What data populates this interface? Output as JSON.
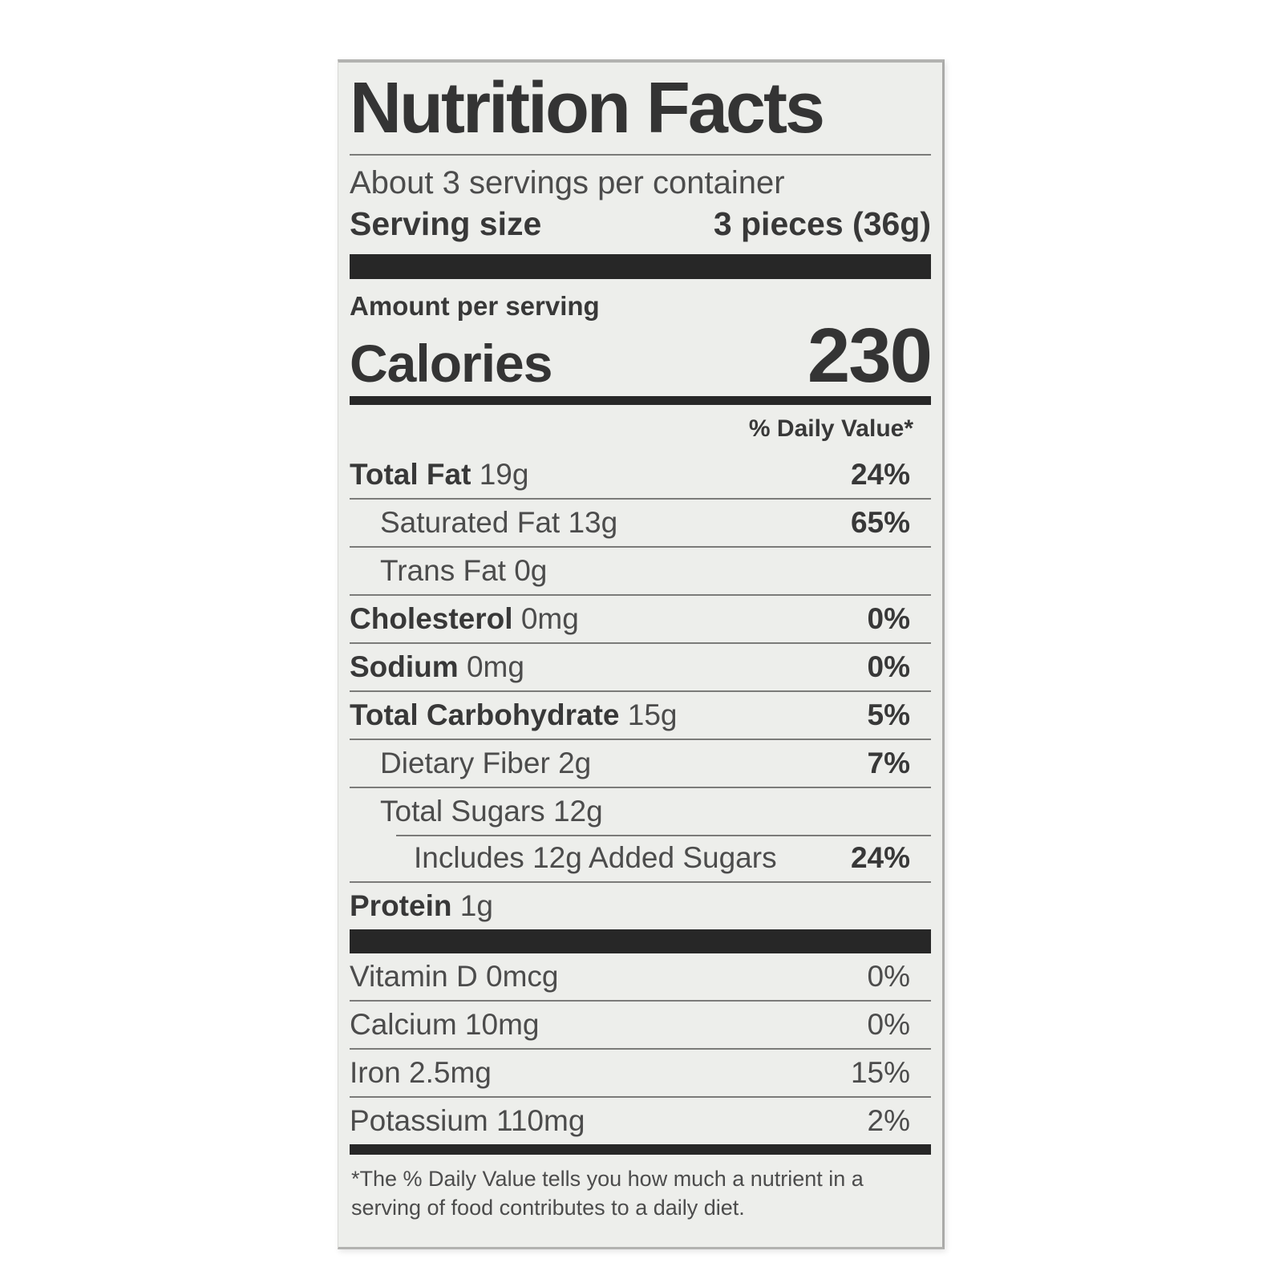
{
  "label": {
    "title": "Nutrition Facts",
    "servings_per_container": "About 3 servings per container",
    "serving_size": {
      "label": "Serving size",
      "value": "3 pieces (36g)"
    },
    "amount_per_serving": "Amount per serving",
    "calories": {
      "label": "Calories",
      "value": "230"
    },
    "daily_value_header": "% Daily Value*",
    "nutrients": [
      {
        "name": "Total Fat",
        "amount": "19g",
        "dv": "24%",
        "bold_name": true,
        "bold_dv": true,
        "indent": 0
      },
      {
        "name": "Saturated Fat",
        "amount": "13g",
        "dv": "65%",
        "bold_name": false,
        "bold_dv": true,
        "indent": 1
      },
      {
        "name": "Trans Fat",
        "amount": "0g",
        "dv": "",
        "bold_name": false,
        "bold_dv": false,
        "indent": 1
      },
      {
        "name": "Cholesterol",
        "amount": "0mg",
        "dv": "0%",
        "bold_name": true,
        "bold_dv": true,
        "indent": 0
      },
      {
        "name": "Sodium",
        "amount": "0mg",
        "dv": "0%",
        "bold_name": true,
        "bold_dv": true,
        "indent": 0
      },
      {
        "name": "Total Carbohydrate",
        "amount": "15g",
        "dv": "5%",
        "bold_name": true,
        "bold_dv": true,
        "indent": 0
      },
      {
        "name": "Dietary Fiber",
        "amount": "2g",
        "dv": "7%",
        "bold_name": false,
        "bold_dv": true,
        "indent": 1
      },
      {
        "name": "Total Sugars",
        "amount": "12g",
        "dv": "",
        "bold_name": false,
        "bold_dv": false,
        "indent": 1
      },
      {
        "name": "Includes 12g Added Sugars",
        "amount": "",
        "dv": "24%",
        "bold_name": false,
        "bold_dv": true,
        "indent": 2,
        "indented_divider": true
      },
      {
        "name": "Protein",
        "amount": "1g",
        "dv": "",
        "bold_name": true,
        "bold_dv": false,
        "indent": 0
      }
    ],
    "micronutrients": [
      {
        "name": "Vitamin D",
        "amount": "0mcg",
        "dv": "0%"
      },
      {
        "name": "Calcium",
        "amount": "10mg",
        "dv": "0%"
      },
      {
        "name": "Iron",
        "amount": "2.5mg",
        "dv": "15%"
      },
      {
        "name": "Potassium",
        "amount": "110mg",
        "dv": "2%"
      }
    ],
    "footnote": "*The % Daily Value tells you how much a nutrient in a serving of food contributes to a daily diet."
  }
}
